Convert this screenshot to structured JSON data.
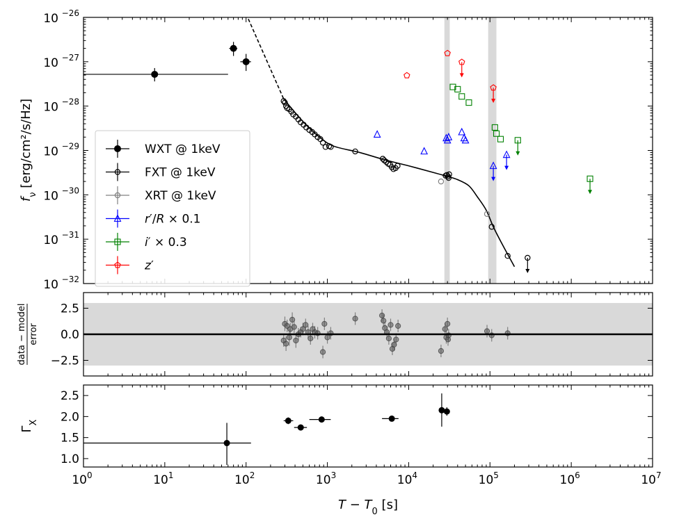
{
  "chart_data": [
    {
      "panel": "light-curve",
      "type": "scatter",
      "xscale": "log",
      "yscale": "log",
      "xlim": [
        1,
        10000000
      ],
      "ylim": [
        1e-32,
        1e-26
      ],
      "ylabel_main": "f",
      "ylabel_sub": "ν",
      "ylabel_unit": " [erg/cm²/s/Hz]",
      "y_ticks": [
        {
          "v": 1e-26,
          "base": "10",
          "exp": "−26"
        },
        {
          "v": 1e-27,
          "base": "10",
          "exp": "−27"
        },
        {
          "v": 1e-28,
          "base": "10",
          "exp": "−28"
        },
        {
          "v": 1e-29,
          "base": "10",
          "exp": "−29"
        },
        {
          "v": 1e-30,
          "base": "10",
          "exp": "−30"
        },
        {
          "v": 1e-31,
          "base": "10",
          "exp": "−31"
        },
        {
          "v": 1e-32,
          "base": "10",
          "exp": "−32"
        }
      ],
      "shaded_bands": [
        [
          27500,
          32000
        ],
        [
          95000,
          120000
        ]
      ],
      "legend": {
        "location": "center-left",
        "entries": [
          {
            "marker": "filled-circle",
            "color": "#000000",
            "text": "WXT @ 1keV"
          },
          {
            "marker": "open-circle",
            "color": "#000000",
            "text": "FXT @ 1keV"
          },
          {
            "marker": "open-circle",
            "color": "#808080",
            "text": "XRT @ 1keV"
          },
          {
            "marker": "triangle",
            "color": "#0000ff",
            "text_parts": [
              "r",
              "′/",
              "R",
              " × 0.1"
            ]
          },
          {
            "marker": "square",
            "color": "#008000",
            "text_parts": [
              "i",
              "′ × 0.3"
            ]
          },
          {
            "marker": "pentagon",
            "color": "#ff0000",
            "text_parts": [
              "z",
              "′"
            ]
          }
        ]
      },
      "series": [
        {
          "name": "WXT @ 1keV",
          "color": "#000000",
          "marker": "filled-circle",
          "points": [
            {
              "x": 7.5,
              "y": 5.2e-28,
              "xlo": 1,
              "xhi": 60,
              "ylo": 3.6e-28,
              "yhi": 7.2e-28
            },
            {
              "x": 70,
              "y": 2e-27,
              "xlo": 62,
              "xhi": 78,
              "ylo": 1.35e-27,
              "yhi": 2.8e-27
            },
            {
              "x": 100,
              "y": 1e-27,
              "xlo": 85,
              "xhi": 115,
              "ylo": 6.2e-28,
              "yhi": 1.5e-27
            }
          ]
        },
        {
          "name": "FXT @ 1keV",
          "color": "#000000",
          "marker": "open-circle",
          "points": [
            {
              "x": 290,
              "y": 1.3e-28
            },
            {
              "x": 300,
              "y": 1.2e-28
            },
            {
              "x": 310,
              "y": 1e-28
            },
            {
              "x": 320,
              "y": 9e-29
            },
            {
              "x": 340,
              "y": 8.5e-29
            },
            {
              "x": 360,
              "y": 7.5e-29
            },
            {
              "x": 380,
              "y": 6.5e-29
            },
            {
              "x": 410,
              "y": 5.8e-29
            },
            {
              "x": 440,
              "y": 5e-29
            },
            {
              "x": 470,
              "y": 4.3e-29
            },
            {
              "x": 510,
              "y": 3.8e-29
            },
            {
              "x": 550,
              "y": 3.3e-29
            },
            {
              "x": 600,
              "y": 2.9e-29
            },
            {
              "x": 650,
              "y": 2.6e-29
            },
            {
              "x": 700,
              "y": 2.3e-29
            },
            {
              "x": 760,
              "y": 2e-29
            },
            {
              "x": 820,
              "y": 1.8e-29
            },
            {
              "x": 880,
              "y": 1.5e-29
            },
            {
              "x": 950,
              "y": 1.2e-29
            },
            {
              "x": 1050,
              "y": 1.25e-29
            },
            {
              "x": 1100,
              "y": 1.2e-29
            },
            {
              "x": 2200,
              "y": 9.5e-30
            },
            {
              "x": 4800,
              "y": 6.5e-30
            },
            {
              "x": 5000,
              "y": 6e-30
            },
            {
              "x": 5300,
              "y": 5.5e-30
            },
            {
              "x": 5600,
              "y": 5e-30
            },
            {
              "x": 5900,
              "y": 4.8e-30
            },
            {
              "x": 6200,
              "y": 4.2e-30
            },
            {
              "x": 6500,
              "y": 3.8e-30
            },
            {
              "x": 6900,
              "y": 4e-30
            },
            {
              "x": 7300,
              "y": 4.5e-30
            },
            {
              "x": 28500,
              "y": 2.7e-30
            },
            {
              "x": 29500,
              "y": 2.8e-30
            },
            {
              "x": 30500,
              "y": 2.6e-30
            },
            {
              "x": 31000,
              "y": 2.4e-30
            },
            {
              "x": 31500,
              "y": 2.9e-30
            },
            {
              "x": 105000,
              "y": 1.9e-31
            },
            {
              "x": 165000,
              "y": 4.2e-32
            }
          ]
        },
        {
          "name": "FXT upper limit",
          "color": "#000000",
          "marker": "open-circle",
          "upper_limit": true,
          "points": [
            {
              "x": 290000,
              "y": 3.8e-32
            }
          ]
        },
        {
          "name": "XRT @ 1keV",
          "color": "#808080",
          "marker": "open-circle",
          "points": [
            {
              "x": 25000,
              "y": 2e-30
            },
            {
              "x": 92000,
              "y": 3.7e-31
            }
          ]
        },
        {
          "name": "r'/R x 0.1",
          "color": "#0000ff",
          "marker": "triangle",
          "points": [
            {
              "x": 4100,
              "y": 2.3e-29
            },
            {
              "x": 15500,
              "y": 9.6e-30
            },
            {
              "x": 29000,
              "y": 1.9e-29
            },
            {
              "x": 30000,
              "y": 1.7e-29
            },
            {
              "x": 31000,
              "y": 2e-29
            },
            {
              "x": 45000,
              "y": 2.6e-29
            },
            {
              "x": 48000,
              "y": 1.9e-29
            },
            {
              "x": 50000,
              "y": 1.7e-29
            }
          ]
        },
        {
          "name": "r'/R x 0.1 upper limit",
          "color": "#0000ff",
          "marker": "triangle",
          "upper_limit": true,
          "points": [
            {
              "x": 110000,
              "y": 4.5e-30
            },
            {
              "x": 160000,
              "y": 8e-30
            }
          ]
        },
        {
          "name": "i' x 0.3",
          "color": "#008000",
          "marker": "square",
          "points": [
            {
              "x": 35000,
              "y": 2.7e-28
            },
            {
              "x": 40000,
              "y": 2.4e-28
            },
            {
              "x": 45000,
              "y": 1.65e-28
            },
            {
              "x": 55000,
              "y": 1.2e-28
            },
            {
              "x": 115000,
              "y": 3.3e-29
            },
            {
              "x": 120000,
              "y": 2.4e-29
            },
            {
              "x": 135000,
              "y": 1.8e-29
            }
          ]
        },
        {
          "name": "i' x 0.3 upper limit",
          "color": "#008000",
          "marker": "square",
          "upper_limit": true,
          "points": [
            {
              "x": 220000,
              "y": 1.7e-29
            },
            {
              "x": 1700000,
              "y": 2.3e-30
            }
          ]
        },
        {
          "name": "z'",
          "color": "#ff0000",
          "marker": "pentagon",
          "points": [
            {
              "x": 9500,
              "y": 4.9e-28
            },
            {
              "x": 30000,
              "y": 1.55e-27
            }
          ]
        },
        {
          "name": "z' upper limit",
          "color": "#ff0000",
          "marker": "pentagon",
          "upper_limit": true,
          "points": [
            {
              "x": 45000,
              "y": 9.8e-28
            },
            {
              "x": 110000,
              "y": 2.6e-28
            }
          ]
        }
      ],
      "model_curve": {
        "dashed": [
          [
            100,
            1.2e-26
          ],
          [
            290,
            1.45e-28
          ]
        ],
        "solid": [
          [
            290,
            1.45e-28
          ],
          [
            500,
            4.5e-29
          ],
          [
            800,
            2e-29
          ],
          [
            1200,
            1.25e-29
          ],
          [
            2500,
            9e-30
          ],
          [
            5000,
            6.2e-30
          ],
          [
            10000,
            4.5e-30
          ],
          [
            20000,
            3.2e-30
          ],
          [
            30000,
            2.6e-30
          ],
          [
            40000,
            2.2e-30
          ],
          [
            55000,
            1.6e-30
          ],
          [
            70000,
            9e-31
          ],
          [
            90000,
            4.5e-31
          ],
          [
            110000,
            1.9e-31
          ],
          [
            140000,
            8e-32
          ],
          [
            200000,
            2.4e-32
          ]
        ]
      }
    },
    {
      "panel": "residuals",
      "type": "scatter",
      "xscale": "log",
      "xlim": [
        1,
        10000000
      ],
      "ylim": [
        -4,
        4
      ],
      "ylabel_numerator": "data − model",
      "ylabel_denominator": "error",
      "y_ticks": [
        {
          "v": 2.5,
          "label": "2.5"
        },
        {
          "v": 0.0,
          "label": "0.0"
        },
        {
          "v": -2.5,
          "label": "−2.5"
        }
      ],
      "band": [
        -3,
        3
      ],
      "zero_line": 0,
      "points": [
        {
          "x": 290,
          "y": -0.6,
          "e": 0.6
        },
        {
          "x": 300,
          "y": 1.0,
          "e": 0.7
        },
        {
          "x": 310,
          "y": -0.9,
          "e": 0.7
        },
        {
          "x": 320,
          "y": 0.8,
          "e": 0.6
        },
        {
          "x": 340,
          "y": -0.3,
          "e": 0.8
        },
        {
          "x": 350,
          "y": 0.5,
          "e": 0.6
        },
        {
          "x": 370,
          "y": 1.4,
          "e": 0.7
        },
        {
          "x": 390,
          "y": 0.7,
          "e": 0.6
        },
        {
          "x": 410,
          "y": -0.6,
          "e": 0.7
        },
        {
          "x": 440,
          "y": 0.0,
          "e": 0.6
        },
        {
          "x": 470,
          "y": 0.2,
          "e": 0.5
        },
        {
          "x": 500,
          "y": 0.5,
          "e": 0.6
        },
        {
          "x": 540,
          "y": 0.9,
          "e": 0.6
        },
        {
          "x": 580,
          "y": 0.2,
          "e": 0.6
        },
        {
          "x": 620,
          "y": -0.4,
          "e": 0.6
        },
        {
          "x": 660,
          "y": 0.5,
          "e": 0.6
        },
        {
          "x": 700,
          "y": 0.2,
          "e": 0.6
        },
        {
          "x": 760,
          "y": 0.1,
          "e": 0.6
        },
        {
          "x": 880,
          "y": -1.7,
          "e": 0.6
        },
        {
          "x": 920,
          "y": 1.0,
          "e": 0.6
        },
        {
          "x": 1000,
          "y": -0.3,
          "e": 0.6
        },
        {
          "x": 1100,
          "y": 0.1,
          "e": 0.6
        },
        {
          "x": 2200,
          "y": 1.5,
          "e": 0.6
        },
        {
          "x": 4700,
          "y": 1.8,
          "e": 0.6
        },
        {
          "x": 4900,
          "y": 1.3,
          "e": 0.6
        },
        {
          "x": 5100,
          "y": 0.6,
          "e": 0.6
        },
        {
          "x": 5400,
          "y": 0.2,
          "e": 0.6
        },
        {
          "x": 5700,
          "y": -0.4,
          "e": 0.6
        },
        {
          "x": 6000,
          "y": 0.9,
          "e": 0.6
        },
        {
          "x": 6300,
          "y": -1.4,
          "e": 0.6
        },
        {
          "x": 6600,
          "y": -1.0,
          "e": 0.6
        },
        {
          "x": 7000,
          "y": -0.5,
          "e": 0.6
        },
        {
          "x": 7400,
          "y": 0.8,
          "e": 0.6
        },
        {
          "x": 25000,
          "y": -1.6,
          "e": 0.6
        },
        {
          "x": 28000,
          "y": 0.5,
          "e": 0.6
        },
        {
          "x": 29000,
          "y": -0.3,
          "e": 0.6
        },
        {
          "x": 30000,
          "y": 1.0,
          "e": 0.6
        },
        {
          "x": 30500,
          "y": -0.5,
          "e": 0.6
        },
        {
          "x": 31000,
          "y": -0.1,
          "e": 0.6
        },
        {
          "x": 92000,
          "y": 0.3,
          "e": 0.6
        },
        {
          "x": 105000,
          "y": -0.1,
          "e": 0.6
        },
        {
          "x": 165000,
          "y": 0.1,
          "e": 0.6
        }
      ]
    },
    {
      "panel": "photon-index",
      "type": "scatter",
      "xscale": "log",
      "xlim": [
        1,
        10000000
      ],
      "ylim": [
        0.8,
        2.75
      ],
      "ylabel_main": "Γ",
      "ylabel_sub": "X",
      "xlabel_parts": [
        "T",
        " − ",
        "T",
        "0",
        " [s]"
      ],
      "y_ticks": [
        {
          "v": 1.0,
          "label": "1.0"
        },
        {
          "v": 1.5,
          "label": "1.5"
        },
        {
          "v": 2.0,
          "label": "2.0"
        },
        {
          "v": 2.5,
          "label": "2.5"
        }
      ],
      "x_ticks": [
        {
          "v": 1,
          "base": "10",
          "exp": "0"
        },
        {
          "v": 10,
          "base": "10",
          "exp": "1"
        },
        {
          "v": 100,
          "base": "10",
          "exp": "2"
        },
        {
          "v": 1000,
          "base": "10",
          "exp": "3"
        },
        {
          "v": 10000,
          "base": "10",
          "exp": "4"
        },
        {
          "v": 100000,
          "base": "10",
          "exp": "5"
        },
        {
          "v": 1000000,
          "base": "10",
          "exp": "6"
        },
        {
          "v": 10000000,
          "base": "10",
          "exp": "7"
        }
      ],
      "points": [
        {
          "x": 58,
          "y": 1.37,
          "xlo": 1,
          "xhi": 115,
          "ylo": 0.85,
          "yhi": 1.85
        },
        {
          "x": 330,
          "y": 1.9,
          "xlo": 290,
          "xhi": 380,
          "ylo": 1.82,
          "yhi": 1.98
        },
        {
          "x": 470,
          "y": 1.74,
          "xlo": 390,
          "xhi": 560,
          "ylo": 1.67,
          "yhi": 1.81
        },
        {
          "x": 850,
          "y": 1.93,
          "xlo": 600,
          "xhi": 1100,
          "ylo": 1.86,
          "yhi": 2.0
        },
        {
          "x": 6200,
          "y": 1.95,
          "xlo": 4700,
          "xhi": 7500,
          "ylo": 1.9,
          "yhi": 2.0
        },
        {
          "x": 25500,
          "y": 2.15,
          "xlo": 24000,
          "xhi": 27000,
          "ylo": 1.76,
          "yhi": 2.55
        },
        {
          "x": 29500,
          "y": 2.12,
          "xlo": 28000,
          "xhi": 31000,
          "ylo": 2.02,
          "yhi": 2.22
        }
      ]
    }
  ]
}
